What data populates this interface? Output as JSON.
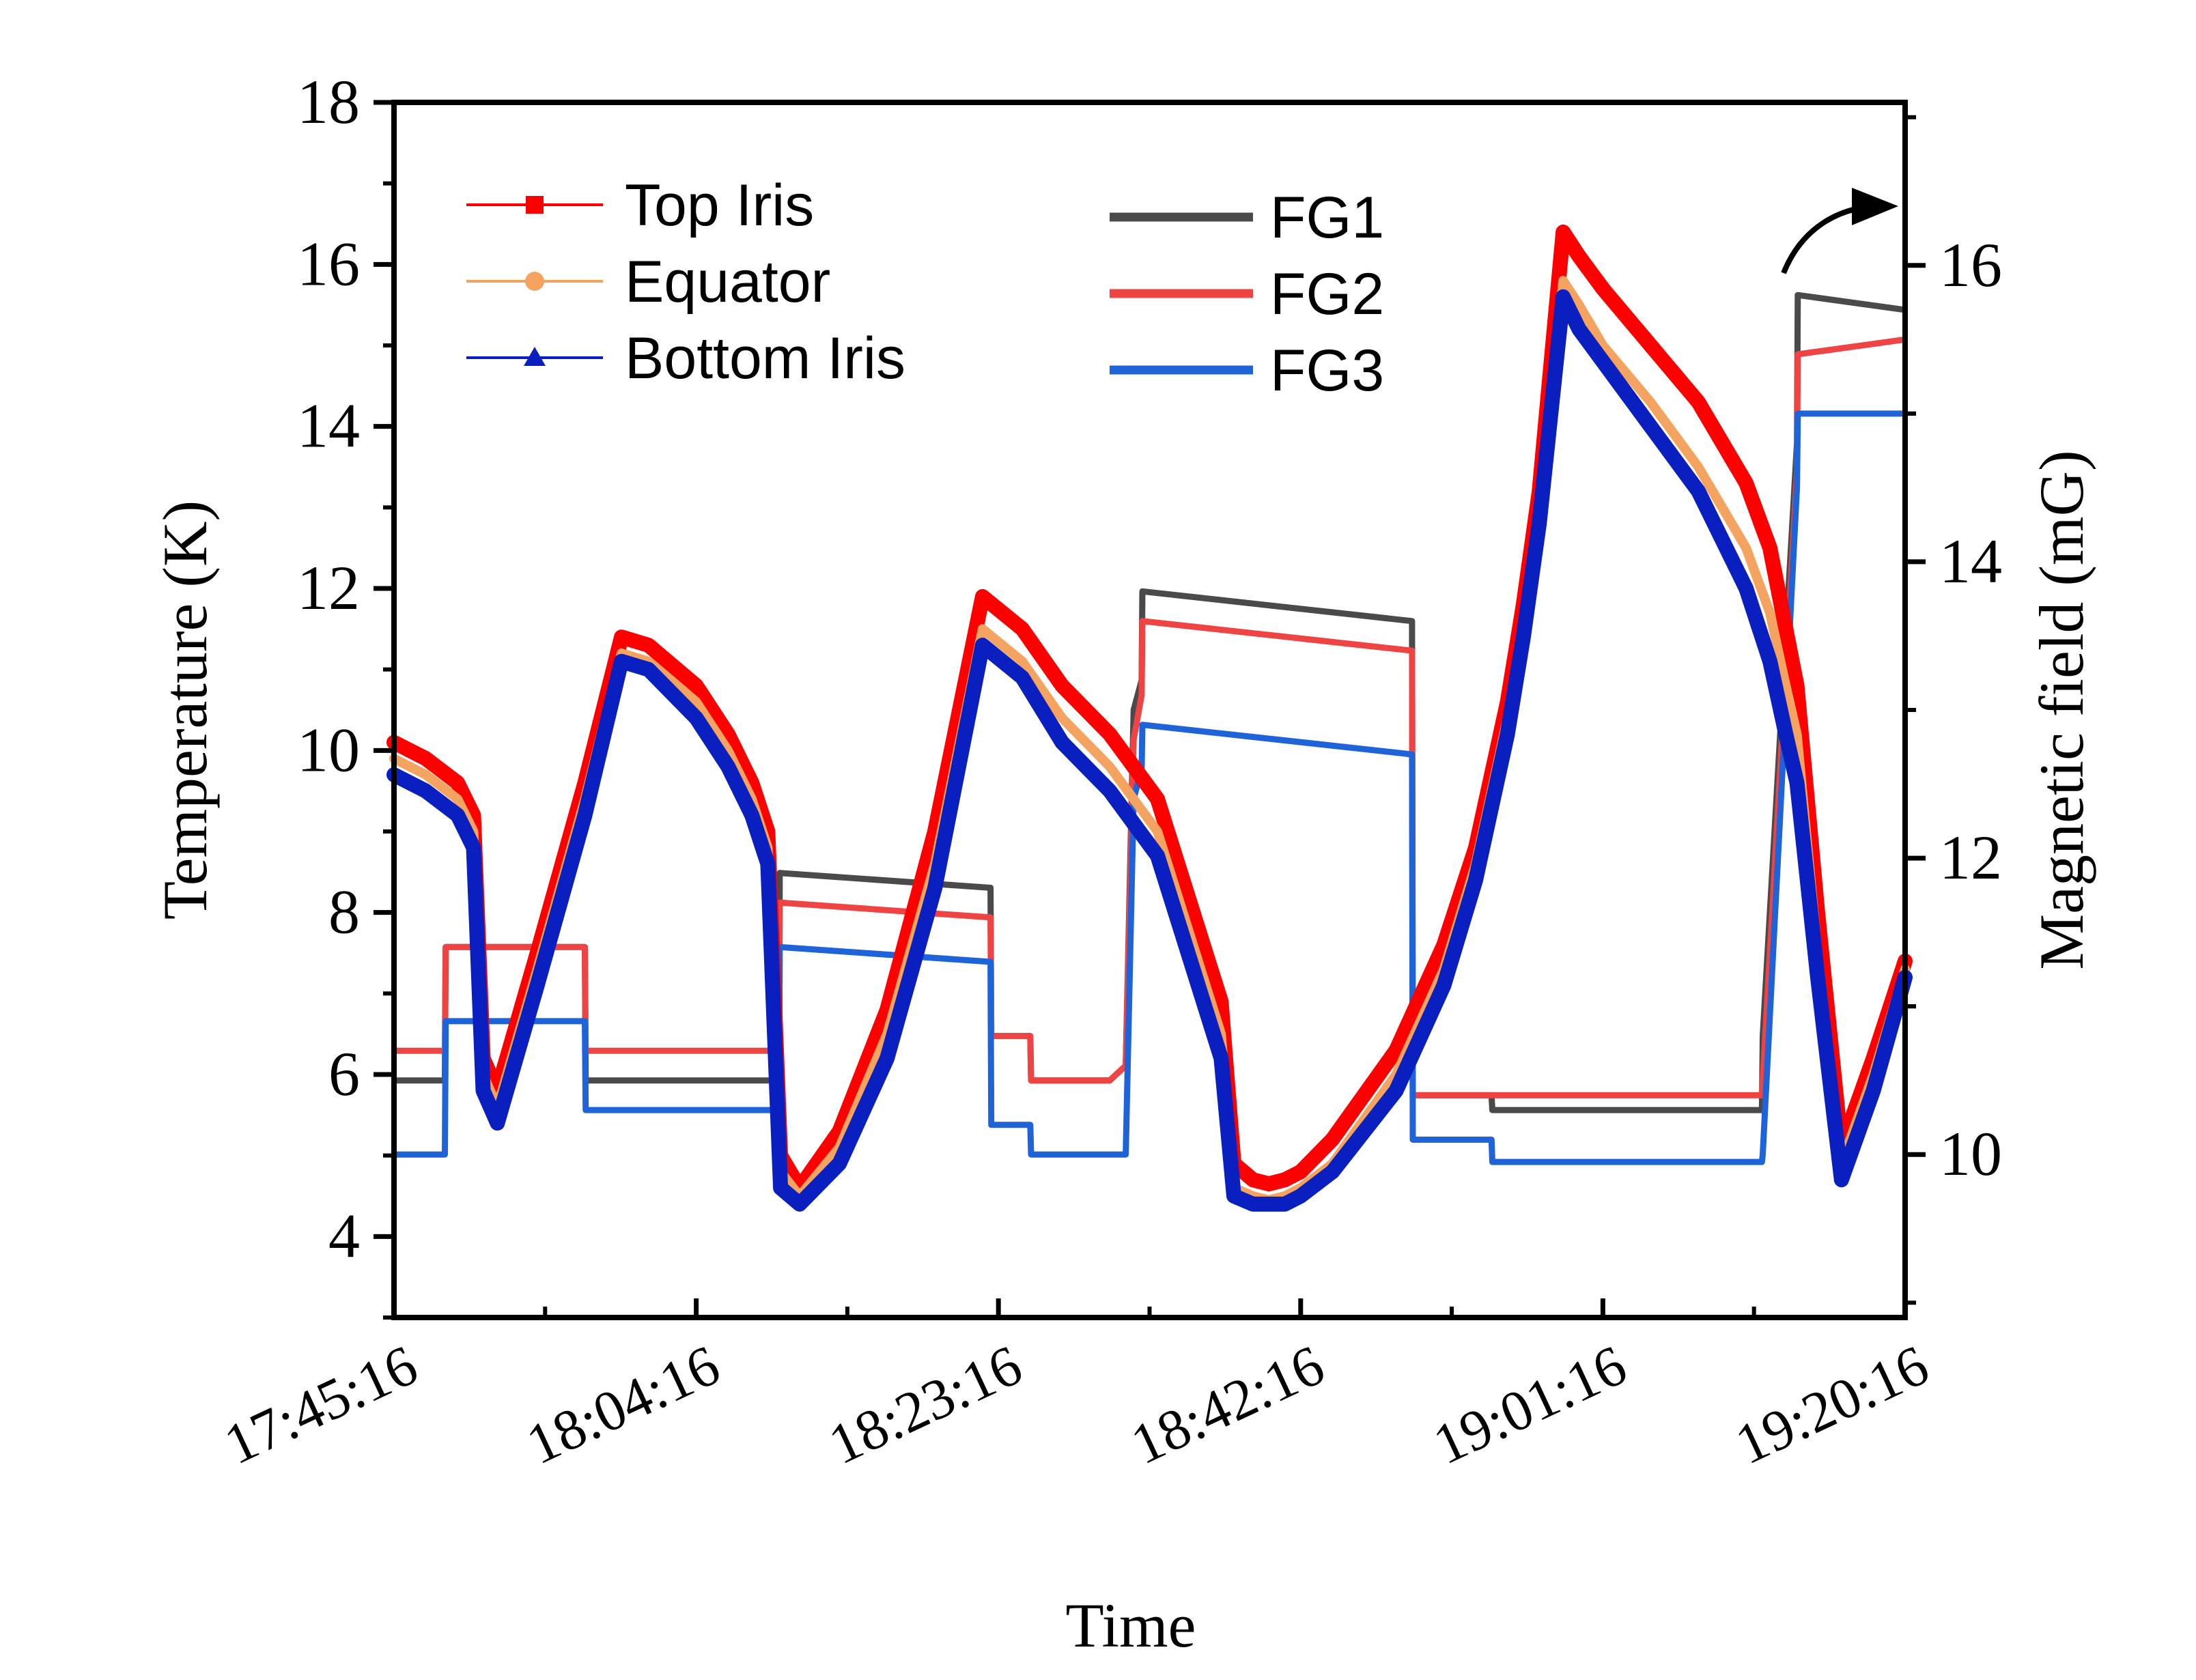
{
  "chart_data": {
    "type": "line",
    "title": "",
    "xlabel": "Time",
    "ylabel_left": "Temperature (K)",
    "ylabel_right": "Magnetic field (mG)",
    "x_unit": "minutes after 17:45:16",
    "xlim": [
      0,
      95
    ],
    "ylim_left": [
      3,
      18
    ],
    "ylim_right": [
      8.9,
      17.1
    ],
    "xticks": [
      {
        "value": 0,
        "label": "17:45:16"
      },
      {
        "value": 19,
        "label": "18:04:16"
      },
      {
        "value": 38,
        "label": "18:23:16"
      },
      {
        "value": 57,
        "label": "18:42:16"
      },
      {
        "value": 76,
        "label": "19:01:16"
      },
      {
        "value": 95,
        "label": "19:20:16"
      }
    ],
    "yticks_left": [
      {
        "value": 4,
        "label": "4"
      },
      {
        "value": 6,
        "label": "6"
      },
      {
        "value": 8,
        "label": "8"
      },
      {
        "value": 10,
        "label": "10"
      },
      {
        "value": 12,
        "label": "12"
      },
      {
        "value": 14,
        "label": "14"
      },
      {
        "value": 16,
        "label": "16"
      },
      {
        "value": 18,
        "label": "18"
      }
    ],
    "yticks_right": [
      {
        "value": 10,
        "label": "10"
      },
      {
        "value": 12,
        "label": "12"
      },
      {
        "value": 14,
        "label": "14"
      },
      {
        "value": 16,
        "label": "16"
      }
    ],
    "temperature_series": [
      {
        "name": "Top Iris",
        "color": "#ff0000",
        "axis": "left",
        "marker": "square",
        "x": [
          0,
          2,
          4,
          5,
          5.6,
          6.5,
          9,
          12,
          14.3,
          16,
          19,
          21,
          22.5,
          23.5,
          24.3,
          25.5,
          28,
          31,
          34,
          37,
          39.5,
          42,
          45,
          48,
          52,
          52.8,
          54,
          55,
          56,
          57,
          59,
          63,
          66,
          68,
          70,
          71,
          72,
          73.5,
          74.5,
          76,
          79,
          82,
          85,
          86.5,
          87.5,
          88.2,
          89.5,
          91,
          93,
          95
        ],
        "y": [
          10.1,
          9.9,
          9.6,
          9.2,
          6.2,
          5.8,
          7.5,
          9.6,
          11.4,
          11.3,
          10.8,
          10.2,
          9.6,
          9,
          5,
          4.6,
          5.3,
          6.8,
          9,
          11.9,
          11.5,
          10.8,
          10.2,
          9.4,
          6.9,
          4.9,
          4.7,
          4.65,
          4.7,
          4.8,
          5.2,
          6.3,
          7.6,
          8.8,
          10.6,
          11.8,
          13.2,
          16.4,
          16.1,
          15.7,
          15,
          14.3,
          13.3,
          12.5,
          11.5,
          10.8,
          8,
          5.1,
          6.2,
          7.4
        ]
      },
      {
        "name": "Equator",
        "color": "#f4a460",
        "axis": "left",
        "marker": "circle",
        "x": [
          0,
          2,
          4,
          5,
          5.6,
          6.5,
          9,
          12,
          14.3,
          16,
          19,
          21,
          22.5,
          23.5,
          24.3,
          25.5,
          28,
          31,
          34,
          37,
          39.5,
          42,
          45,
          48,
          52,
          52.8,
          54,
          55,
          56,
          57,
          59,
          63,
          66,
          68,
          70,
          71,
          72,
          73.5,
          74.5,
          76,
          79,
          82,
          85,
          86.5,
          87.5,
          88.2,
          89.5,
          91,
          93,
          95
        ],
        "y": [
          9.9,
          9.7,
          9.4,
          9,
          6,
          5.6,
          7.3,
          9.4,
          11.2,
          11.1,
          10.6,
          10,
          9.4,
          8.8,
          4.8,
          4.5,
          5.1,
          6.5,
          8.6,
          11.5,
          11.1,
          10.4,
          9.8,
          9,
          6.5,
          4.6,
          4.5,
          4.45,
          4.5,
          4.6,
          4.9,
          6,
          7.3,
          8.6,
          10.4,
          11.6,
          13,
          15.8,
          15.5,
          15,
          14.3,
          13.5,
          12.5,
          11.7,
          10.8,
          10.2,
          7.5,
          4.9,
          6,
          7.3
        ]
      },
      {
        "name": "Bottom Iris",
        "color": "#0a1fbf",
        "axis": "left",
        "marker": "triangle",
        "x": [
          0,
          2,
          4,
          5,
          5.6,
          6.5,
          9,
          12,
          14.3,
          16,
          19,
          21,
          22.5,
          23.5,
          24.3,
          25.5,
          28,
          31,
          34,
          37,
          39.5,
          42,
          45,
          48,
          52,
          52.8,
          54,
          55,
          56,
          57,
          59,
          63,
          66,
          68,
          70,
          71,
          72,
          73.5,
          74.5,
          76,
          79,
          82,
          85,
          86.5,
          87.5,
          88.2,
          89.5,
          91,
          93,
          95
        ],
        "y": [
          9.7,
          9.5,
          9.2,
          8.8,
          5.8,
          5.4,
          7.1,
          9.2,
          11.1,
          11,
          10.4,
          9.8,
          9.2,
          8.6,
          4.6,
          4.4,
          4.9,
          6.2,
          8.3,
          11.3,
          10.9,
          10.1,
          9.5,
          8.7,
          6.2,
          4.5,
          4.4,
          4.4,
          4.4,
          4.5,
          4.8,
          5.8,
          7.1,
          8.4,
          10.2,
          11.4,
          12.8,
          15.6,
          15.2,
          14.8,
          14,
          13.2,
          12,
          11.1,
          10.2,
          9.6,
          7.2,
          4.7,
          5.8,
          7.2
        ]
      }
    ],
    "field_series": [
      {
        "name": "FG1",
        "color": "#4a4a4a",
        "axis": "right",
        "x": [
          0,
          3.2,
          3.25,
          12,
          12.05,
          24.2,
          24.25,
          37.5,
          37.55,
          40,
          40.05,
          45,
          46,
          46.5,
          47,
          47.05,
          64,
          64.05,
          69,
          69.05,
          86,
          86.05,
          88.2,
          88.25,
          95
        ],
        "y": [
          10.5,
          10.5,
          11.4,
          11.4,
          10.5,
          10.5,
          11.9,
          11.8,
          10.8,
          10.8,
          10.5,
          10.5,
          10.6,
          13,
          13.2,
          13.8,
          13.6,
          10.4,
          10.4,
          10.3,
          10.3,
          10.8,
          14.8,
          15.8,
          15.7
        ]
      },
      {
        "name": "FG2",
        "color": "#ef4444",
        "axis": "right",
        "x": [
          0,
          3.2,
          3.25,
          12,
          12.05,
          24.2,
          24.25,
          37.5,
          37.55,
          40,
          40.05,
          45,
          46,
          46.5,
          47,
          47.05,
          64,
          64.05,
          69,
          69.05,
          86,
          86.05,
          88.2,
          88.25,
          95
        ],
        "y": [
          10.7,
          10.7,
          11.4,
          11.4,
          10.7,
          10.7,
          11.7,
          11.6,
          10.8,
          10.8,
          10.5,
          10.5,
          10.6,
          12.8,
          13.1,
          13.6,
          13.4,
          10.4,
          10.4,
          10.4,
          10.4,
          10.5,
          14.6,
          15.4,
          15.5
        ]
      },
      {
        "name": "FG3",
        "color": "#1f63d8",
        "axis": "right",
        "x": [
          0,
          3.2,
          3.25,
          12,
          12.05,
          24.2,
          24.25,
          37.5,
          37.55,
          40,
          40.05,
          45,
          46,
          46.5,
          47,
          47.05,
          64,
          64.05,
          69,
          69.05,
          86,
          86.05,
          88.2,
          88.25,
          95
        ],
        "y": [
          10,
          10,
          10.9,
          10.9,
          10.3,
          10.3,
          11.4,
          11.3,
          10.2,
          10.2,
          10,
          10,
          10,
          12.4,
          12.6,
          12.9,
          12.7,
          10.1,
          10.1,
          9.95,
          9.95,
          10,
          14.5,
          15,
          15
        ]
      }
    ],
    "legend_left_position": "top-left",
    "legend_right_position": "top-center",
    "annotation": "arrow pointing to right axis"
  }
}
